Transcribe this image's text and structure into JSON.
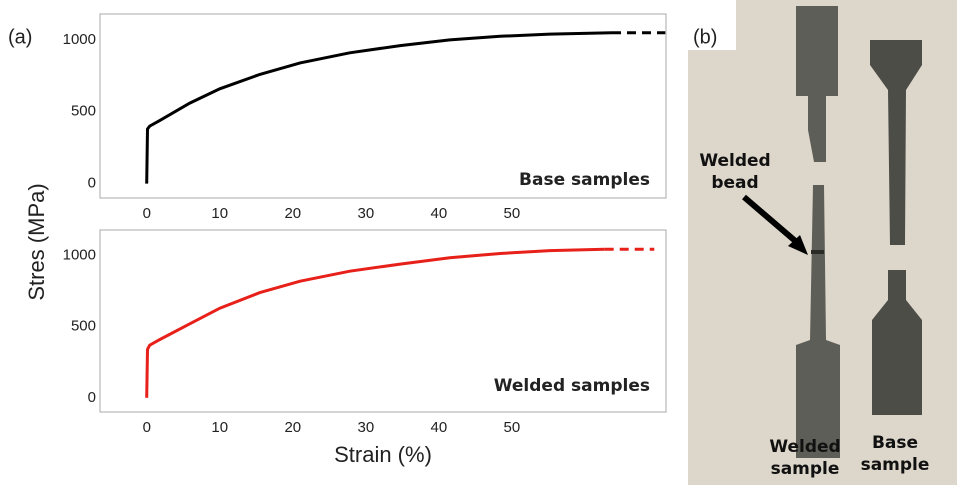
{
  "panel_a_label": "(a)",
  "chart_data": [
    {
      "type": "line",
      "annotation": "Base samples",
      "ylabel": "Stres (MPa)",
      "x": [
        0,
        0.1,
        0.4,
        1.8,
        5.9,
        10,
        15.5,
        21,
        27.8,
        34.7,
        41.5,
        48.4,
        55.2,
        63.7,
        71
      ],
      "series": [
        {
          "color": "#000000",
          "dashed": false,
          "values": [
            0,
            380,
            400,
            440,
            560,
            660,
            760,
            840,
            910,
            960,
            1000,
            1025,
            1040,
            1050,
            null
          ]
        },
        {
          "color": "#000000",
          "dashed": true,
          "values": [
            null,
            null,
            null,
            null,
            null,
            null,
            null,
            null,
            null,
            null,
            null,
            null,
            null,
            1050,
            1050
          ]
        }
      ],
      "xlim": [
        -6.4,
        71.1
      ],
      "ylim": [
        -100,
        1180
      ],
      "xticks": [
        0,
        10,
        20,
        30,
        40,
        50
      ],
      "yticks": [
        0,
        500,
        1000
      ]
    },
    {
      "type": "line",
      "annotation": "Welded samples",
      "xlabel": "Strain (%)",
      "x": [
        0,
        0.1,
        0.4,
        1.8,
        5.9,
        10,
        15.5,
        21,
        27.8,
        34.7,
        41.5,
        48.4,
        55.2,
        62.7,
        69.5
      ],
      "series": [
        {
          "color": "#e8201a",
          "dashed": false,
          "values": [
            0,
            340,
            370,
            410,
            520,
            630,
            740,
            820,
            890,
            940,
            985,
            1015,
            1035,
            1045,
            null
          ]
        },
        {
          "color": "#e8201a",
          "dashed": true,
          "values": [
            null,
            null,
            null,
            null,
            null,
            null,
            null,
            null,
            null,
            null,
            null,
            null,
            null,
            1045,
            1045
          ]
        }
      ],
      "xlim": [
        -6.4,
        71.1
      ],
      "ylim": [
        -100,
        1180
      ],
      "xticks": [
        0,
        10,
        20,
        30,
        40,
        50
      ],
      "yticks": [
        0,
        500,
        1000
      ]
    }
  ],
  "panel_b": {
    "label": "(b)",
    "welded_bead": "Welded bead",
    "welded_sample": "Welded sample",
    "base_sample": "Base sample"
  }
}
